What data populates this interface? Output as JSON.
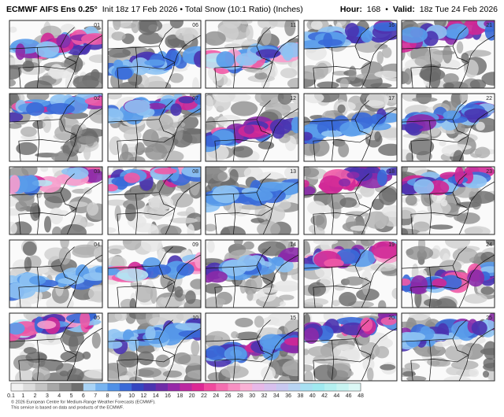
{
  "header": {
    "title_bold": "ECMWF AIFS Ens 0.25°",
    "title_rest": "Init 18z 17 Feb 2026 • Total Snow (10:1 Ratio) (Inches)",
    "hour_label": "Hour:",
    "hour": "168",
    "separator": "•",
    "valid_label": "Valid:",
    "valid": "18z Tue 24 Feb 2026"
  },
  "panels": [
    "01",
    "02",
    "03",
    "04",
    "05",
    "06",
    "07",
    "08",
    "09",
    "10",
    "11",
    "12",
    "13",
    "14",
    "15",
    "16",
    "17",
    "18",
    "19",
    "20",
    "21",
    "22",
    "23",
    "24",
    "25"
  ],
  "colorbar": {
    "labels": [
      0.1,
      1,
      2,
      3,
      4,
      5,
      6,
      7,
      8,
      9,
      10,
      12,
      14,
      16,
      18,
      20,
      22,
      24,
      26,
      28,
      30,
      32,
      34,
      36,
      38,
      40,
      42,
      44,
      46,
      48
    ],
    "colors": [
      "#f2f2f2",
      "#dcdcdc",
      "#c4c4c4",
      "#a8a8a8",
      "#8c8c8c",
      "#6e6e6e",
      "#a9d3f5",
      "#78b4f0",
      "#4f90e6",
      "#3a6ad8",
      "#3446c0",
      "#4a34b0",
      "#6e2ca8",
      "#9628a8",
      "#bb28a0",
      "#dc2894",
      "#f04a9e",
      "#f46eb0",
      "#f790c2",
      "#f9b0d4",
      "#e8b8e8",
      "#d8c0ee",
      "#c8c8f0",
      "#b8d4f2",
      "#a8e0f2",
      "#a0eaf0",
      "#b4f0f0",
      "#c8f4f2",
      "#dcf8f6"
    ]
  },
  "footer": {
    "copyright": "© 2026 European Centre for Medium-Range Weather Forecasts (ECMWF).",
    "notice": "This service is based on data and products of the ECMWF."
  }
}
